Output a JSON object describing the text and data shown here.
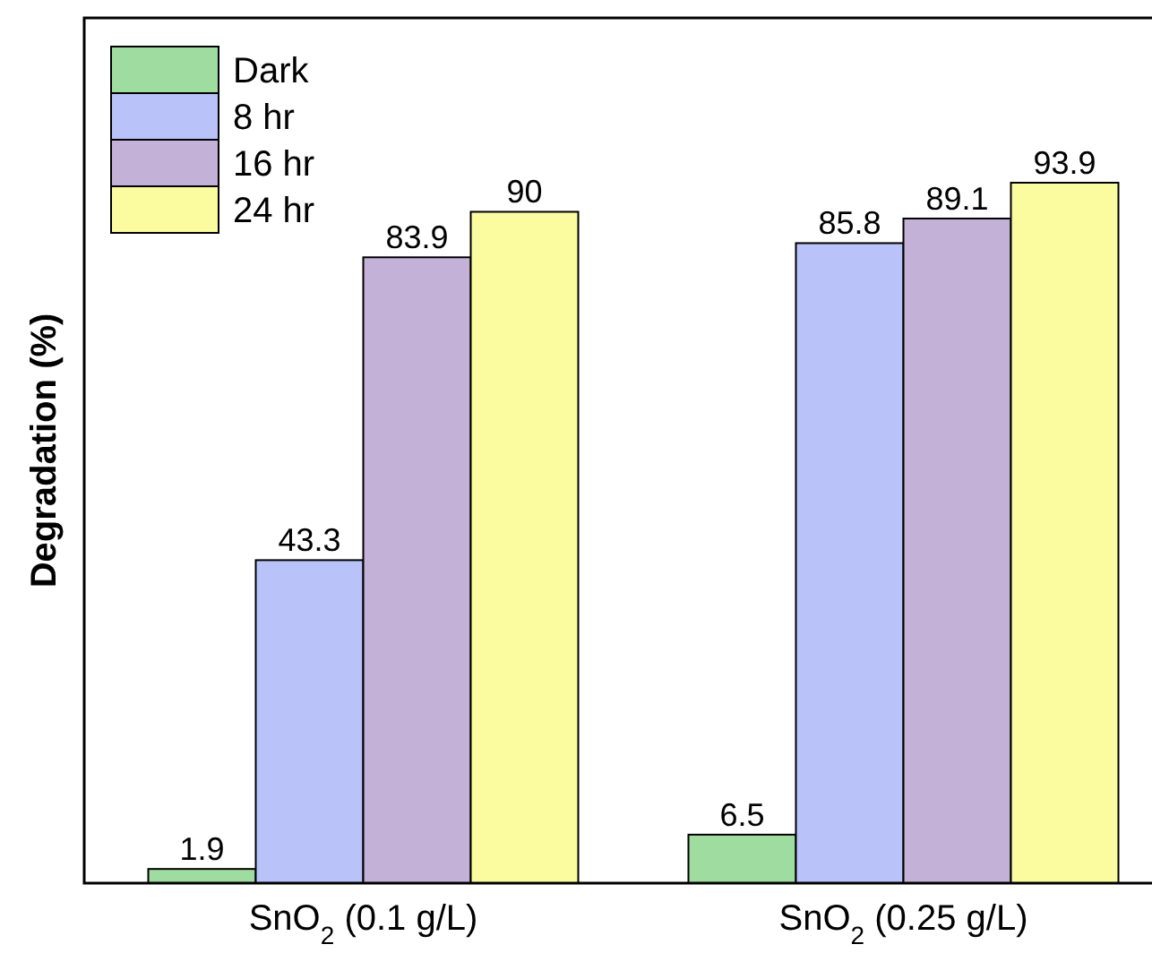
{
  "chart_data": {
    "type": "bar",
    "ylabel": "Degradation (%)",
    "categories": [
      "SnO$_{2}$ (0.1 g/L)",
      "SnO$_{2}$ (0.25 g/L)"
    ],
    "series": [
      {
        "name": "Dark",
        "color": "#9fdc9f",
        "values": [
          1.9,
          6.5
        ]
      },
      {
        "name": "8 hr",
        "color": "#b9c3fa",
        "values": [
          43.3,
          85.8
        ]
      },
      {
        "name": "16 hr",
        "color": "#c3b1d7",
        "values": [
          83.9,
          89.1
        ]
      },
      {
        "name": "24 hr",
        "color": "#fbfb9f",
        "values": [
          90,
          93.9
        ]
      }
    ],
    "data_labels": true,
    "legend": "top left",
    "tick_labels": "x"
  }
}
